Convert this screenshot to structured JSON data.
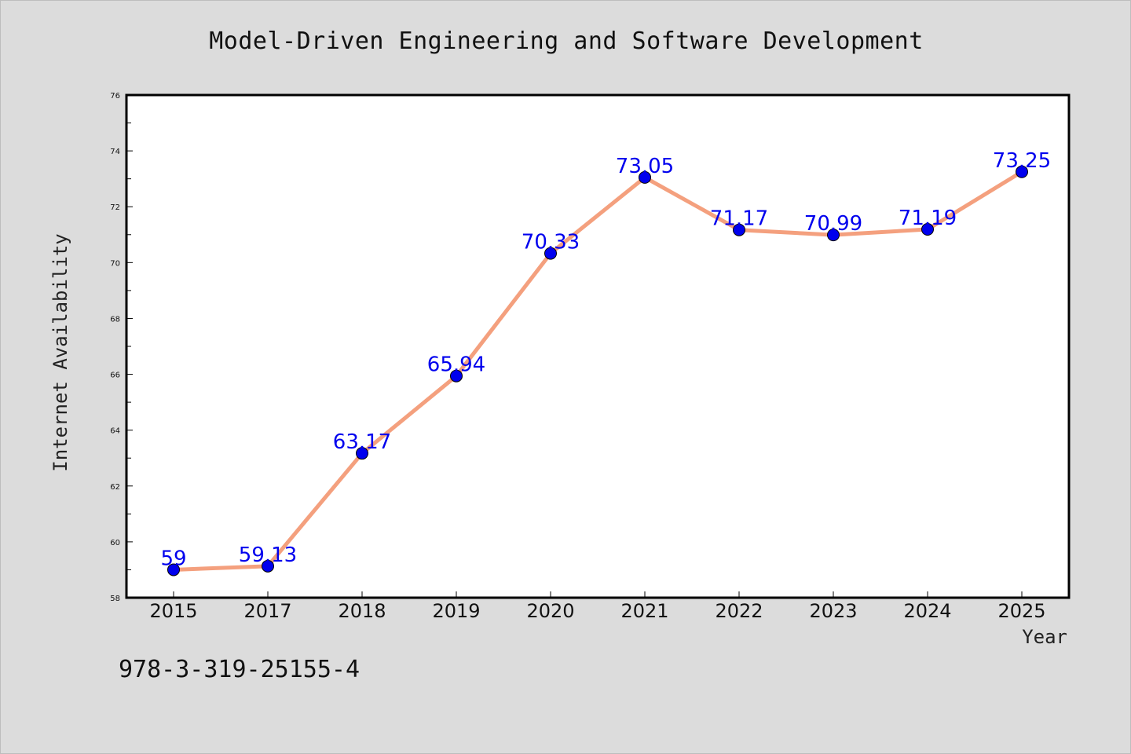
{
  "chart_data": {
    "type": "line",
    "title": "Model-Driven Engineering and Software Development",
    "xlabel": "Year",
    "ylabel": "Internet Availability",
    "categories": [
      "2015",
      "2017",
      "2018",
      "2019",
      "2020",
      "2021",
      "2022",
      "2023",
      "2024",
      "2025"
    ],
    "series": [
      {
        "values": [
          59,
          59.13,
          63.17,
          65.94,
          70.33,
          73.05,
          71.17,
          70.99,
          71.19,
          73.25
        ],
        "labels": [
          "59",
          "59.13",
          "63.17",
          "65.94",
          "70.33",
          "73.05",
          "71.17",
          "70.99",
          "71.19",
          "73.25"
        ]
      }
    ],
    "ylim": [
      58,
      76
    ],
    "yticks": [
      58,
      60,
      62,
      64,
      66,
      68,
      70,
      72,
      74,
      76
    ],
    "grid": false,
    "legend": "none",
    "colors": {
      "line": "#f4a07e",
      "marker": "#0000ee",
      "label": "#0000ee",
      "background": "#dcdcdc",
      "plot_background": "#ffffff"
    }
  },
  "annotation": {
    "isbn": "978-3-319-25155-4"
  }
}
